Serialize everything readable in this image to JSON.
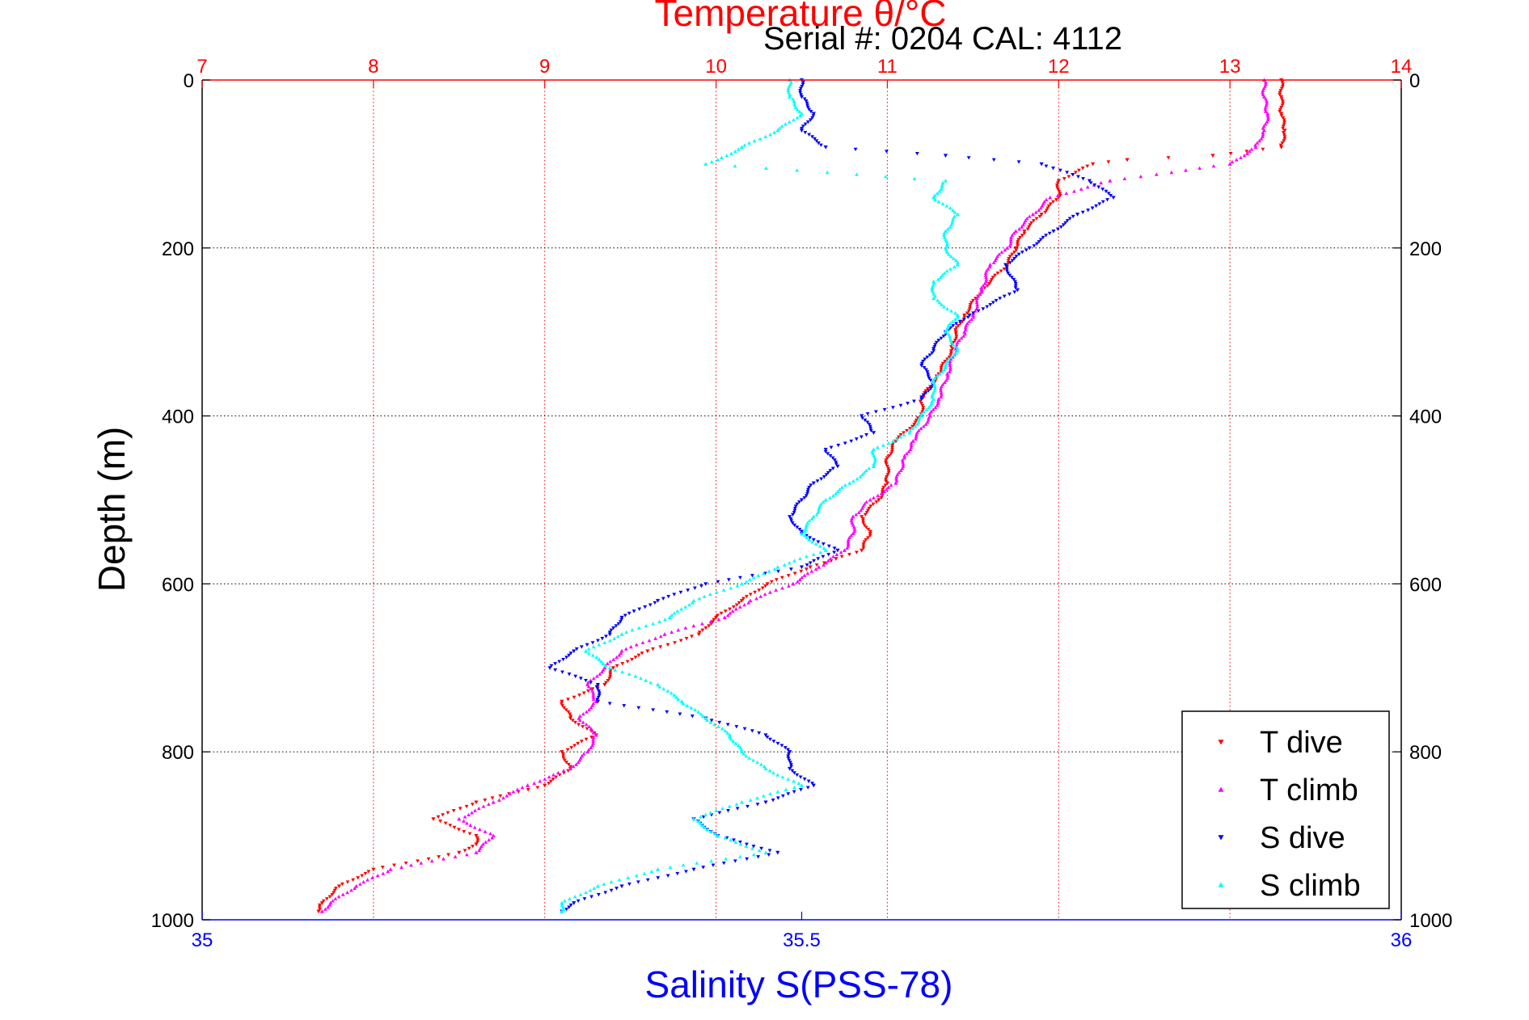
{
  "chart_data": {
    "type": "scatter",
    "title": "Temperature θ/°C",
    "subtitle": "Serial #: 0204  CAL: 4112",
    "ylabel": "Depth (m)",
    "xlabel": "Salinity S(PSS-78)",
    "temperature_axis": {
      "ticks": [
        7,
        8,
        9,
        10,
        11,
        12,
        13,
        14
      ],
      "range": [
        7,
        14
      ],
      "color": "#ff0000"
    },
    "salinity_axis": {
      "ticks": [
        35,
        35.5,
        36
      ],
      "range": [
        35,
        36
      ],
      "color": "#0000ff"
    },
    "depth_axis": {
      "ticks": [
        0,
        200,
        400,
        600,
        800,
        1000
      ],
      "range": [
        0,
        1000
      ],
      "reversed": true
    },
    "grid": true,
    "legend_position": "bottom-right",
    "series": [
      {
        "name": "T dive",
        "axis": "temperature",
        "color": "#ff0000",
        "marker": "triangle-down",
        "depth": [
          0,
          20,
          40,
          60,
          80,
          90,
          95,
          100,
          120,
          140,
          160,
          180,
          200,
          220,
          250,
          280,
          300,
          320,
          350,
          380,
          400,
          430,
          450,
          480,
          500,
          520,
          540,
          560,
          570,
          580,
          600,
          620,
          640,
          660,
          680,
          700,
          720,
          740,
          760,
          780,
          800,
          820,
          840,
          860,
          880,
          900,
          910,
          920,
          940,
          960,
          980,
          990
        ],
        "values": [
          13.3,
          13.3,
          13.3,
          13.32,
          13.3,
          12.9,
          12.4,
          12.2,
          12.0,
          12.0,
          11.9,
          11.8,
          11.75,
          11.7,
          11.55,
          11.45,
          11.4,
          11.38,
          11.3,
          11.2,
          11.2,
          11.05,
          11.0,
          11.0,
          10.95,
          10.85,
          10.9,
          10.85,
          10.7,
          10.55,
          10.3,
          10.15,
          10.0,
          9.9,
          9.6,
          9.4,
          9.35,
          9.1,
          9.15,
          9.3,
          9.1,
          9.15,
          9.0,
          8.6,
          8.35,
          8.6,
          8.6,
          8.5,
          8.0,
          7.8,
          7.7,
          7.68
        ]
      },
      {
        "name": "T climb",
        "axis": "temperature",
        "color": "#ff00ff",
        "marker": "triangle-up",
        "depth": [
          0,
          20,
          40,
          60,
          80,
          100,
          120,
          140,
          160,
          180,
          200,
          220,
          250,
          280,
          300,
          320,
          350,
          380,
          400,
          430,
          450,
          480,
          500,
          520,
          540,
          560,
          580,
          600,
          620,
          640,
          660,
          680,
          700,
          720,
          740,
          760,
          780,
          800,
          820,
          840,
          860,
          880,
          900,
          920,
          940,
          960,
          980,
          990
        ],
        "values": [
          13.2,
          13.2,
          13.22,
          13.2,
          13.15,
          13.0,
          12.3,
          11.95,
          11.85,
          11.75,
          11.7,
          11.6,
          11.55,
          11.5,
          11.45,
          11.4,
          11.35,
          11.3,
          11.25,
          11.15,
          11.1,
          11.05,
          10.9,
          10.8,
          10.8,
          10.75,
          10.6,
          10.45,
          10.2,
          10.05,
          9.7,
          9.45,
          9.35,
          9.25,
          9.3,
          9.2,
          9.3,
          9.25,
          9.15,
          8.9,
          8.7,
          8.5,
          8.7,
          8.6,
          8.1,
          7.9,
          7.75,
          7.7
        ]
      },
      {
        "name": "S dive",
        "axis": "salinity",
        "color": "#0000ff",
        "marker": "triangle-down",
        "depth": [
          0,
          20,
          40,
          60,
          80,
          90,
          100,
          120,
          140,
          160,
          180,
          200,
          220,
          250,
          280,
          300,
          320,
          340,
          360,
          380,
          400,
          420,
          440,
          460,
          480,
          500,
          520,
          540,
          560,
          580,
          600,
          620,
          640,
          660,
          680,
          700,
          720,
          740,
          760,
          780,
          800,
          820,
          840,
          860,
          880,
          900,
          920,
          940,
          960,
          980,
          990
        ],
        "values": [
          35.5,
          35.5,
          35.51,
          35.5,
          35.52,
          35.62,
          35.7,
          35.74,
          35.76,
          35.73,
          35.71,
          35.69,
          35.67,
          35.68,
          35.64,
          35.62,
          35.61,
          35.6,
          35.61,
          35.6,
          35.55,
          35.56,
          35.52,
          35.53,
          35.51,
          35.5,
          35.49,
          35.5,
          35.53,
          35.5,
          35.42,
          35.38,
          35.35,
          35.34,
          35.31,
          35.29,
          35.33,
          35.33,
          35.42,
          35.47,
          35.49,
          35.49,
          35.51,
          35.47,
          35.41,
          35.43,
          35.48,
          35.41,
          35.35,
          35.31,
          35.3
        ]
      },
      {
        "name": "S climb",
        "axis": "salinity",
        "color": "#00ffff",
        "marker": "triangle-up",
        "depth": [
          0,
          20,
          40,
          60,
          80,
          95,
          100,
          120,
          140,
          160,
          180,
          200,
          220,
          240,
          260,
          280,
          300,
          320,
          340,
          360,
          380,
          400,
          420,
          440,
          460,
          480,
          500,
          520,
          540,
          560,
          580,
          600,
          620,
          640,
          660,
          680,
          700,
          720,
          740,
          760,
          780,
          800,
          820,
          840,
          860,
          880,
          900,
          920,
          940,
          960,
          980,
          990
        ],
        "values": [
          35.49,
          35.49,
          35.5,
          35.48,
          35.45,
          35.43,
          35.42,
          35.62,
          35.61,
          35.63,
          35.62,
          35.62,
          35.63,
          35.61,
          35.61,
          35.63,
          35.62,
          35.63,
          35.62,
          35.61,
          35.61,
          35.6,
          35.59,
          35.56,
          35.56,
          35.54,
          35.52,
          35.51,
          35.5,
          35.52,
          35.48,
          35.45,
          35.41,
          35.39,
          35.35,
          35.32,
          35.34,
          35.38,
          35.4,
          35.42,
          35.44,
          35.45,
          35.47,
          35.5,
          35.45,
          35.41,
          35.43,
          35.47,
          35.38,
          35.33,
          35.3,
          35.3
        ]
      }
    ]
  }
}
